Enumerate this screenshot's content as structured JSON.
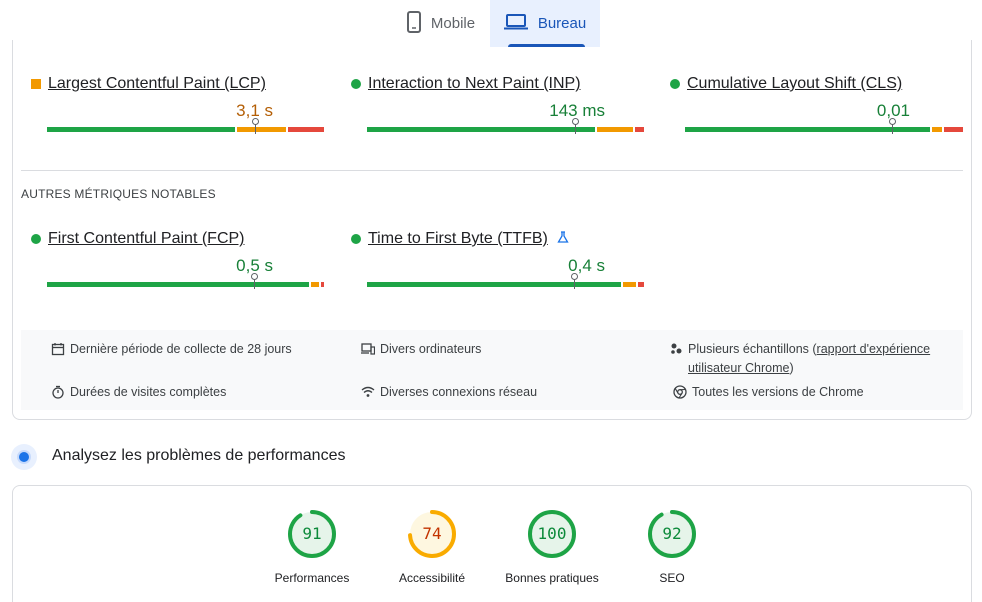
{
  "tabs": {
    "mobile": "Mobile",
    "desktop": "Bureau"
  },
  "core_metrics": [
    {
      "label": "Largest Contentful Paint (LCP)",
      "value": "3,1 s",
      "status": "needs-improvement",
      "color": "#b45f06"
    },
    {
      "label": "Interaction to Next Paint (INP)",
      "value": "143 ms",
      "status": "good",
      "color": "#188038"
    },
    {
      "label": "Cumulative Layout Shift (CLS)",
      "value": "0,01",
      "status": "good",
      "color": "#188038"
    }
  ],
  "other_section_label": "AUTRES MÉTRIQUES NOTABLES",
  "other_metrics": [
    {
      "label": "First Contentful Paint (FCP)",
      "value": "0,5 s",
      "status": "good",
      "color": "#188038"
    },
    {
      "label": "Time to First Byte (TTFB)",
      "value": "0,4 s",
      "status": "good",
      "color": "#188038",
      "badge_icon": "flask-icon"
    }
  ],
  "info": {
    "collection_period": "Dernière période de collecte de 28 jours",
    "devices": "Divers ordinateurs",
    "samples_prefix": "Plusieurs échantillons (",
    "samples_link": "rapport d'expérience utilisateur Chrome",
    "samples_suffix": ")",
    "visit_duration": "Durées de visites complètes",
    "network": "Diverses connexions réseau",
    "chrome_versions": "Toutes les versions de Chrome"
  },
  "diagnose_title": "Analysez les problèmes de performances",
  "scores": [
    {
      "label": "Performances",
      "value": "91",
      "fraction": 0.91,
      "color": "#0c8a3a",
      "ring": "#1ea446",
      "bg": "#e6f4ea"
    },
    {
      "label": "Accessibilité",
      "value": "74",
      "fraction": 0.74,
      "color": "#c33300",
      "ring": "#f9ab00",
      "bg": "#fef7e0"
    },
    {
      "label": "Bonnes pratiques",
      "value": "100",
      "fraction": 1.0,
      "color": "#0c8a3a",
      "ring": "#1ea446",
      "bg": "#e6f4ea"
    },
    {
      "label": "SEO",
      "value": "92",
      "fraction": 0.92,
      "color": "#0c8a3a",
      "ring": "#1ea446",
      "bg": "#e6f4ea"
    }
  ]
}
